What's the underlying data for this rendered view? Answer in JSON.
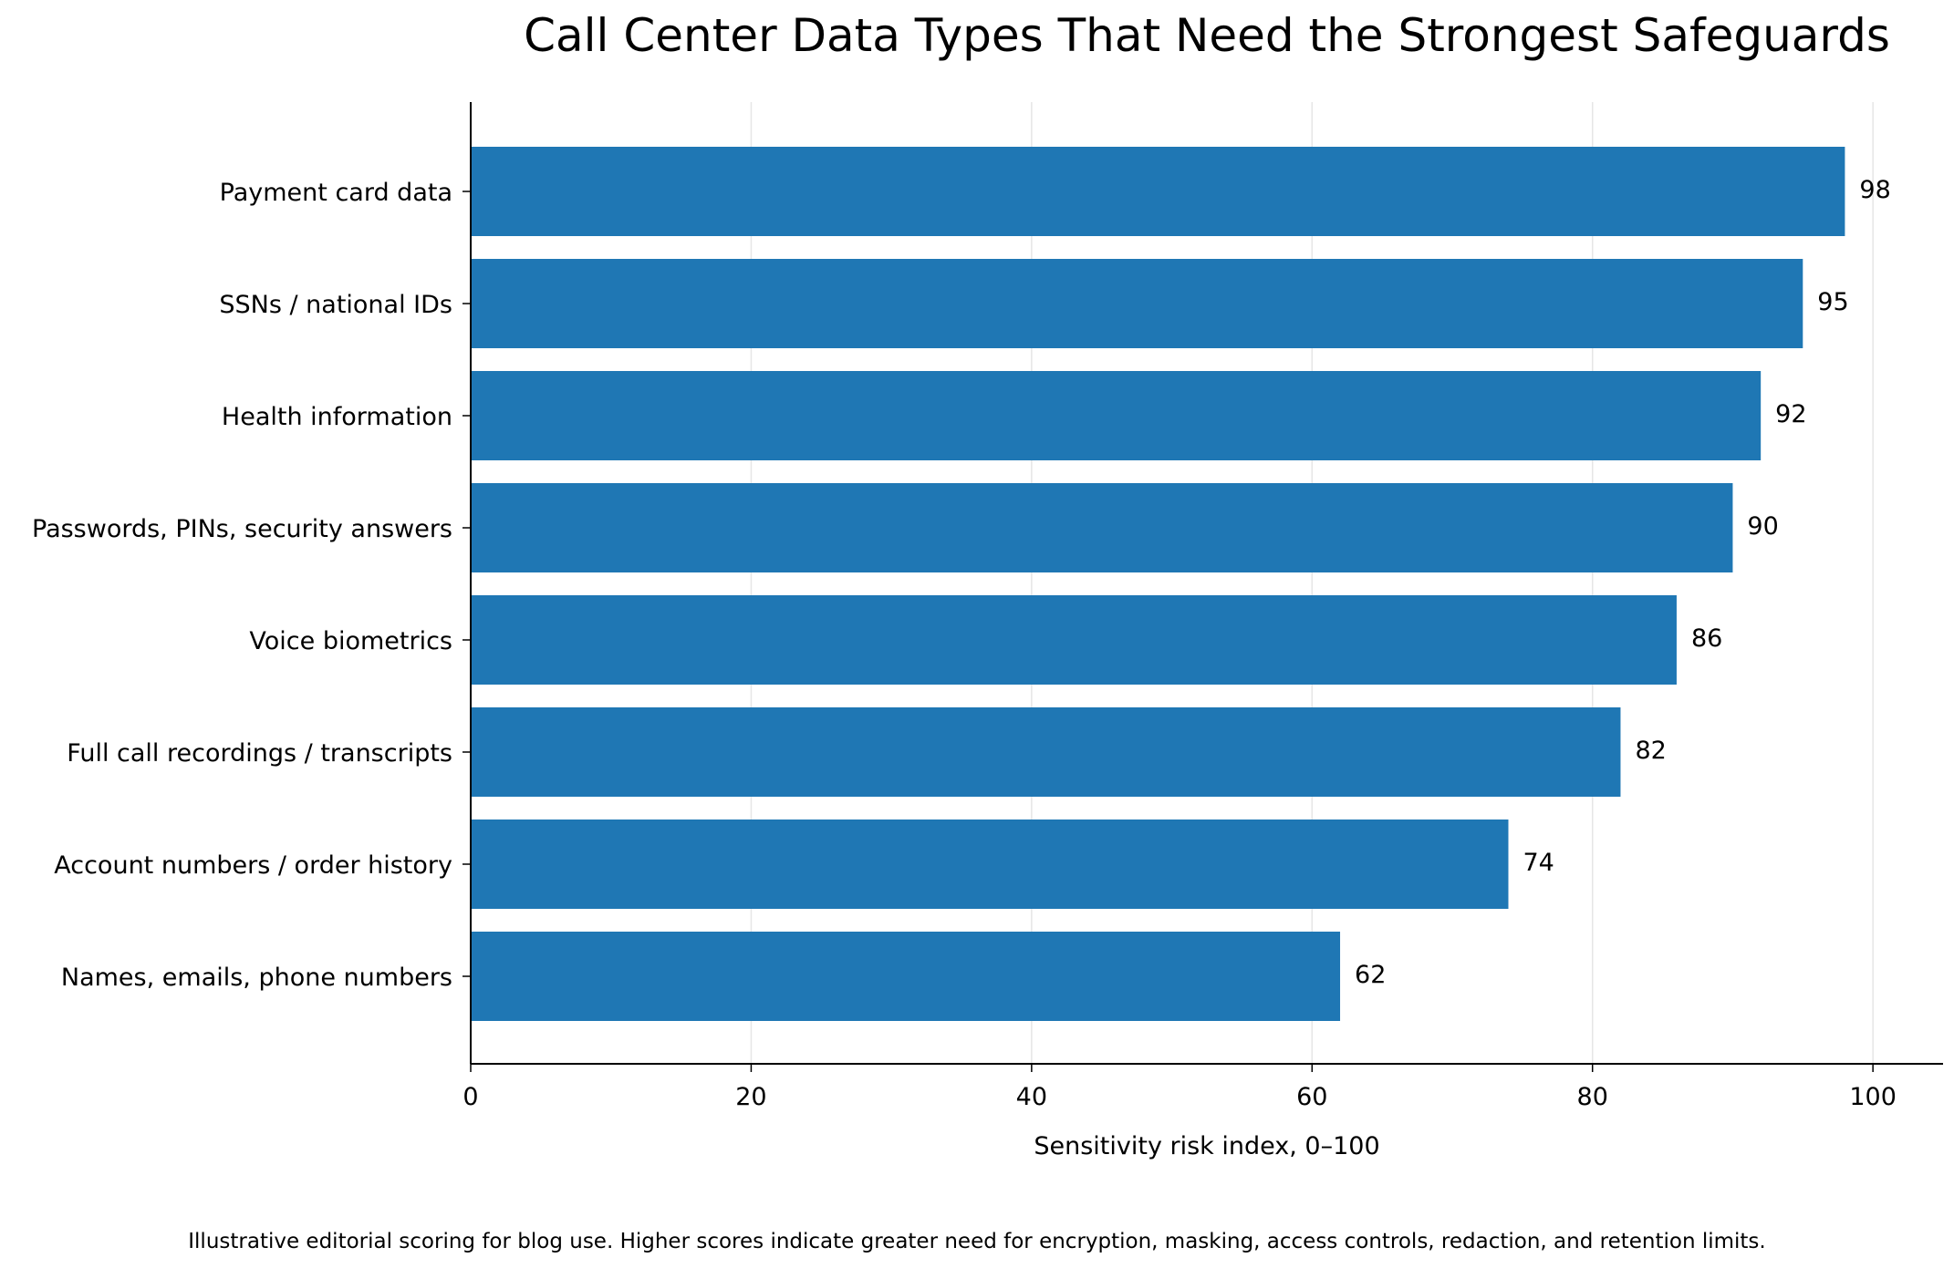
{
  "chart_data": {
    "type": "bar",
    "orientation": "horizontal",
    "title": "Call Center Data Types That Need the Strongest Safeguards",
    "xlabel": "Sensitivity risk index, 0–100",
    "ylabel": "",
    "xlim": [
      0,
      105
    ],
    "x_ticks": [
      0,
      20,
      40,
      60,
      80,
      100
    ],
    "grid": "vertical gridlines, light",
    "legend": "none",
    "bar_color": "#1f77b4",
    "categories": [
      "Payment card data",
      "SSNs / national IDs",
      "Health information",
      "Passwords, PINs, security answers",
      "Voice biometrics",
      "Full call recordings / transcripts",
      "Account numbers / order history",
      "Names, emails, phone numbers"
    ],
    "values": [
      98,
      95,
      92,
      90,
      86,
      82,
      74,
      62
    ],
    "footnote": "Illustrative editorial scoring for blog use. Higher scores indicate greater need for encryption, masking, access controls, redaction, and retention limits."
  }
}
